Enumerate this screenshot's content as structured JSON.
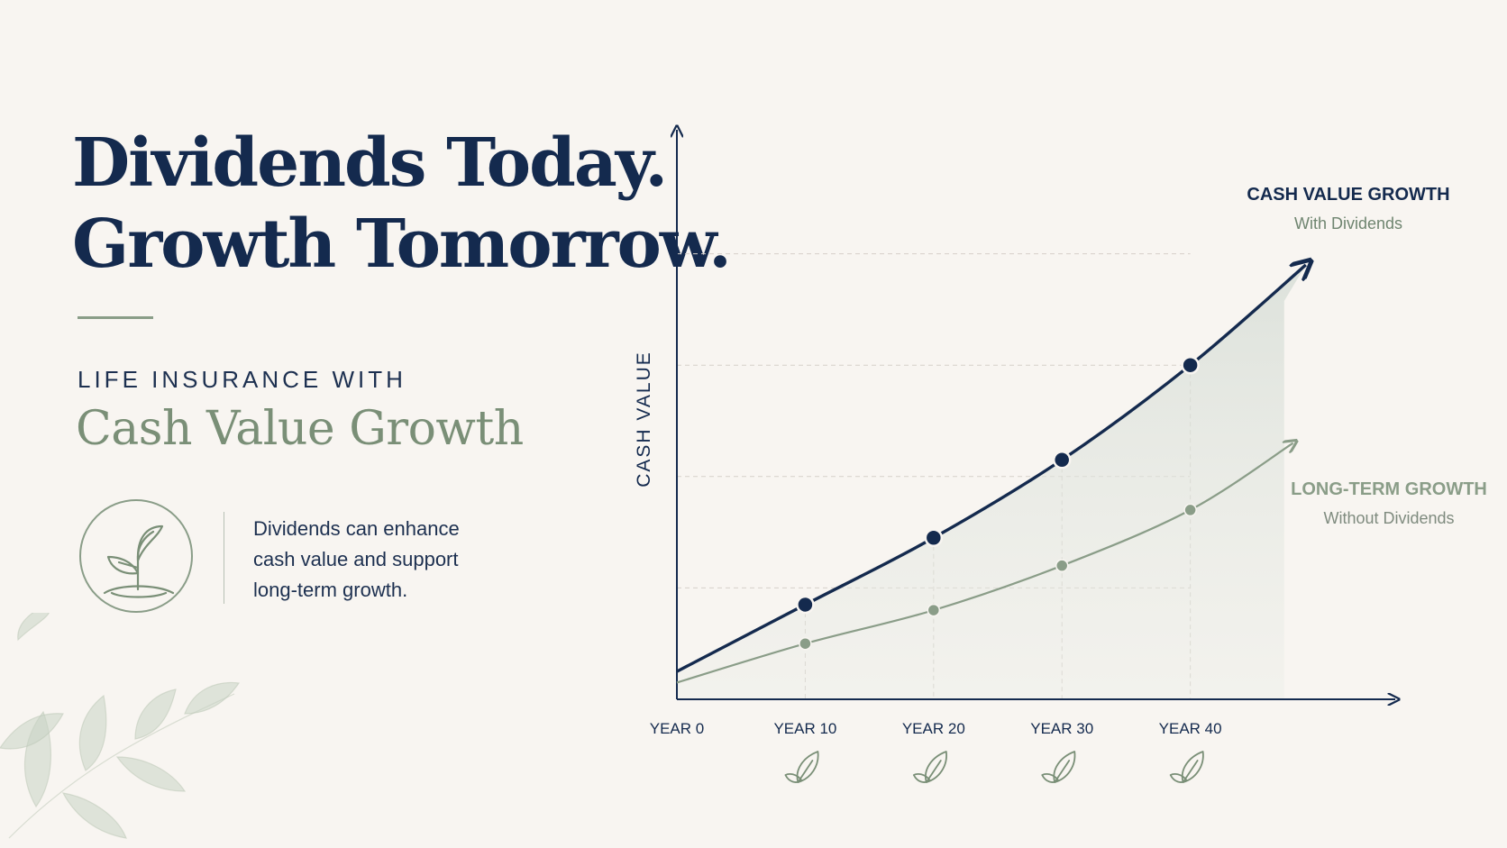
{
  "headline": {
    "line1": "Dividends Today.",
    "line2": "Growth Tomorrow."
  },
  "kicker": "LIFE INSURANCE WITH",
  "subtitle": "Cash Value Growth",
  "description": {
    "line1": "Dividends can enhance",
    "line2": "cash value and support",
    "line3": "long-term growth."
  },
  "icons": {
    "badge": "sprout-icon",
    "tick_icon": "leaf-icon",
    "decoration": "leaf-branch-icon"
  },
  "colors": {
    "navy": "#142a4e",
    "sage": "#8a9d88",
    "background": "#f8f5f1"
  },
  "chart_data": {
    "type": "line",
    "ylabel": "CASH VALUE",
    "xlabel": "",
    "categories": [
      "YEAR 0",
      "YEAR 10",
      "YEAR 20",
      "YEAR 30",
      "YEAR 40"
    ],
    "x": [
      0,
      10,
      20,
      30,
      40
    ],
    "ylim": [
      0,
      100
    ],
    "xlim": [
      0,
      54
    ],
    "grid": true,
    "series": [
      {
        "name": "CASH VALUE GROWTH",
        "subtitle": "With Dividends",
        "color": "#142a4e",
        "values": [
          5,
          17,
          29,
          43,
          60
        ],
        "end": {
          "x": 49,
          "y": 78
        },
        "markers_at": [
          10,
          20,
          30,
          40
        ],
        "filled": true
      },
      {
        "name": "LONG-TERM GROWTH",
        "subtitle": "Without Dividends",
        "color": "#8a9d88",
        "values": [
          3,
          10,
          16,
          24,
          34
        ],
        "end": {
          "x": 48,
          "y": 46
        },
        "markers_at": [
          10,
          20,
          30,
          40
        ],
        "filled": false
      }
    ]
  }
}
